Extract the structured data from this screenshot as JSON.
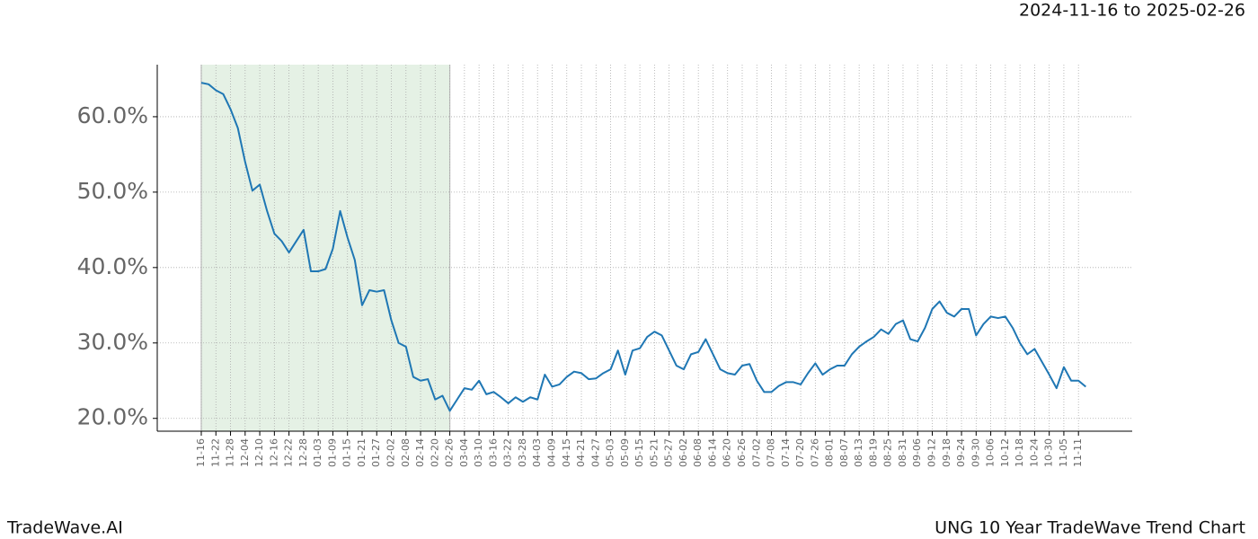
{
  "chart_data": {
    "type": "line",
    "date_range": "2024-11-16 to 2025-02-26",
    "watermark": "TradeWave.AI",
    "title": "UNG 10 Year TradeWave Trend Chart",
    "highlight": [
      "11-16",
      "02-26"
    ],
    "highlight_color": "#e5f1e5",
    "grid": true,
    "categories": [
      "11-16",
      null,
      "11-22",
      null,
      "11-28",
      null,
      "12-04",
      null,
      "12-10",
      null,
      "12-16",
      null,
      "12-22",
      null,
      "12-28",
      null,
      "01-03",
      null,
      "01-09",
      null,
      "01-15",
      null,
      "01-21",
      null,
      "01-27",
      null,
      "02-02",
      null,
      "02-08",
      null,
      "02-14",
      null,
      "02-20",
      null,
      "02-26",
      null,
      "03-04",
      null,
      "03-10",
      null,
      "03-16",
      null,
      "03-22",
      null,
      "03-28",
      null,
      "04-03",
      null,
      "04-09",
      null,
      "04-15",
      null,
      "04-21",
      null,
      "04-27",
      null,
      "05-03",
      null,
      "05-09",
      null,
      "05-15",
      null,
      "05-21",
      null,
      "05-27",
      null,
      "06-02",
      null,
      "06-08",
      null,
      "06-14",
      null,
      "06-20",
      null,
      "06-26",
      null,
      "07-02",
      null,
      "07-08",
      null,
      "07-14",
      null,
      "07-20",
      null,
      "07-26",
      null,
      "08-01",
      null,
      "08-07",
      null,
      "08-13",
      null,
      "08-19",
      null,
      "08-25",
      null,
      "08-31",
      null,
      "09-06",
      null,
      "09-12",
      null,
      "09-18",
      null,
      "09-24",
      null,
      "09-30",
      null,
      "10-06",
      null,
      "10-12",
      null,
      "10-18",
      null,
      "10-24",
      null,
      "10-30",
      null,
      "11-05",
      null,
      "11-11",
      null
    ],
    "series": [
      {
        "color": "#1f77b4",
        "values": [
          64.5,
          64.3,
          63.5,
          63,
          61,
          58.5,
          54,
          50.2,
          51,
          47.5,
          44.5,
          43.5,
          42,
          43.5,
          45,
          39.5,
          39.5,
          39.8,
          42.5,
          47.5,
          44,
          41,
          35,
          37,
          36.8,
          37,
          33,
          30,
          29.5,
          25.5,
          25,
          25.2,
          22.5,
          23,
          21,
          22.5,
          24,
          23.8,
          25,
          23.2,
          23.5,
          22.8,
          22,
          22.8,
          22.2,
          22.8,
          22.5,
          25.8,
          24.2,
          24.5,
          25.5,
          26.2,
          26,
          25.2,
          25.3,
          26,
          26.5,
          29,
          25.8,
          29,
          29.3,
          30.8,
          31.5,
          31,
          29,
          27,
          26.5,
          28.5,
          28.8,
          30.5,
          28.5,
          26.5,
          26,
          25.8,
          27,
          27.2,
          25,
          23.5,
          23.5,
          24.3,
          24.8,
          24.8,
          24.5,
          26,
          27.3,
          25.8,
          26.5,
          27,
          27,
          28.5,
          29.5,
          30.2,
          30.8,
          31.8,
          31.2,
          32.5,
          33,
          30.5,
          30.2,
          32,
          34.5,
          35.5,
          34,
          33.5,
          34.5,
          34.5,
          31,
          32.5,
          33.5,
          33.3,
          33.5,
          32,
          30,
          28.5,
          29.2,
          27.5,
          25.8,
          24,
          26.8,
          25,
          25,
          24.2
        ]
      }
    ],
    "ylim": [
      18.3,
      66.9
    ],
    "yticks": [
      {
        "value": 20,
        "label": "20.0%"
      },
      {
        "value": 30,
        "label": "30.0%"
      },
      {
        "value": 40,
        "label": "40.0%"
      },
      {
        "value": 50,
        "label": "50.0%"
      },
      {
        "value": 60,
        "label": "60.0%"
      }
    ]
  }
}
